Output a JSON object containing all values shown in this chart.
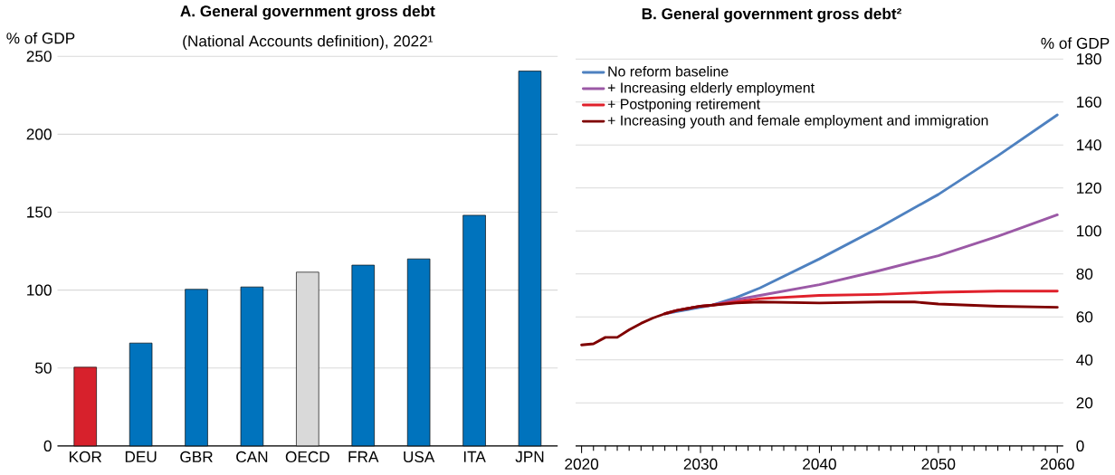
{
  "chart_data": [
    {
      "type": "bar",
      "title": "A. General government gross debt",
      "subtitle": "(National Accounts definition), 2022¹",
      "ylabel": "% of GDP",
      "categories": [
        "KOR",
        "DEU",
        "GBR",
        "CAN",
        "OECD",
        "FRA",
        "USA",
        "ITA",
        "JPN"
      ],
      "values": [
        50.5,
        66,
        100.5,
        102,
        111.5,
        116,
        120,
        148,
        240.5
      ],
      "colors": [
        "#d7212c",
        "#0073bd",
        "#0073bd",
        "#0073bd",
        "#d9d9d9",
        "#0073bd",
        "#0073bd",
        "#0073bd",
        "#0073bd"
      ],
      "ylim": [
        0,
        250
      ],
      "yticks": [
        0,
        50,
        100,
        150,
        200,
        250
      ],
      "grid": "y"
    },
    {
      "type": "line",
      "title": "B. General government gross debt²",
      "ylabel": "% of GDP",
      "xlim": [
        2019.5,
        2060.5
      ],
      "xticks": [
        2020,
        2030,
        2040,
        2050,
        2060
      ],
      "ylim": [
        0,
        180
      ],
      "yticks": [
        0,
        20,
        40,
        60,
        80,
        100,
        120,
        140,
        160,
        180
      ],
      "grid": "y",
      "legend": "top left",
      "series": [
        {
          "name": "No reform baseline",
          "color": "#4e81c0",
          "x": [
            2027,
            2028,
            2029,
            2030,
            2031,
            2033,
            2035,
            2040,
            2045,
            2050,
            2055,
            2060
          ],
          "values": [
            61.5,
            62.5,
            63.5,
            64.5,
            65.5,
            69,
            73.5,
            87,
            101.5,
            117,
            135,
            154
          ]
        },
        {
          "name": "+ Increasing elderly employment",
          "color": "#9b59a6",
          "x": [
            2027,
            2028,
            2029,
            2030,
            2031,
            2033,
            2035,
            2040,
            2045,
            2050,
            2055,
            2060
          ],
          "values": [
            61.5,
            63,
            64,
            65,
            65.5,
            68,
            70,
            75,
            81.5,
            88.5,
            97.5,
            107.5
          ]
        },
        {
          "name": "+ Postponing retirement",
          "color": "#e0202b",
          "x": [
            2027,
            2028,
            2029,
            2030,
            2031,
            2033,
            2035,
            2040,
            2045,
            2050,
            2055,
            2060
          ],
          "values": [
            61.5,
            63,
            64,
            65,
            65.5,
            67,
            68.5,
            70,
            70.5,
            71.5,
            72,
            72
          ]
        },
        {
          "name": "+ Increasing youth and female employment and immigration",
          "color": "#7f0000",
          "x": [
            2020,
            2021,
            2022,
            2023,
            2024,
            2025,
            2026,
            2027,
            2028,
            2029,
            2030,
            2031,
            2033,
            2035,
            2040,
            2045,
            2048,
            2050,
            2055,
            2060
          ],
          "values": [
            47,
            47.5,
            50.5,
            50.5,
            54,
            57,
            59.5,
            61.5,
            63,
            64,
            65,
            65.5,
            66.5,
            67,
            66.5,
            67,
            67,
            66,
            65,
            64.5
          ]
        }
      ]
    }
  ]
}
